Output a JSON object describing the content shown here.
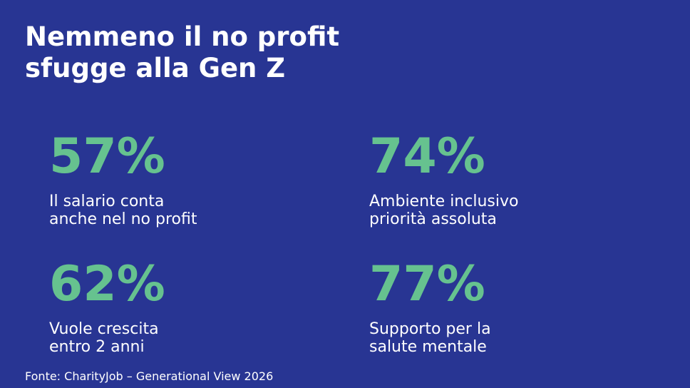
{
  "title": {
    "line1": "Nemmeno il no profit",
    "line2": "sfugge alla Gen Z"
  },
  "stats": [
    {
      "value": "57%",
      "line1": "Il salario conta",
      "line2": "anche nel no profit"
    },
    {
      "value": "74%",
      "line1": "Ambiente inclusivo",
      "line2": "priorità assoluta"
    },
    {
      "value": "62%",
      "line1": "Vuole crescita",
      "line2": "entro 2 anni"
    },
    {
      "value": "77%",
      "line1": "Supporto per la",
      "line2": "salute mentale"
    }
  ],
  "source": "Fonte: CharityJob – Generational View 2026",
  "colors": {
    "background": "#283593",
    "accent": "#66c28f",
    "text": "#ffffff"
  }
}
